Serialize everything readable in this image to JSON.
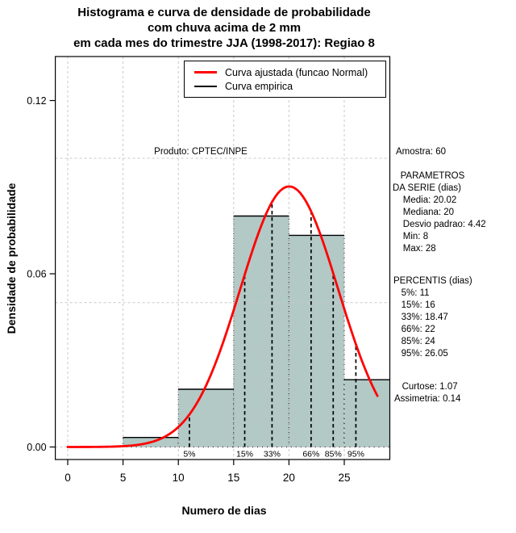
{
  "title": "Histograma e curva de densidade de probabilidade\ncom chuva acima de 2 mm\nem cada mes do trimestre JJA (1998-2017): Regiao 8",
  "legend": {
    "items": [
      {
        "label": "Curva ajustada (funcao Normal)",
        "color": "#ff0000"
      },
      {
        "label": "Curva empirica",
        "color": "#000000"
      }
    ]
  },
  "side_panel": {
    "sample": "Amostra: 60",
    "parameters": "   PARAMETROS\nDA SERIE (dias)\n    Media: 20.02\n    Mediana: 20\n    Desvio padrao: 4.42\n    Min: 8\n    Max: 28",
    "percentiles": "PERCENTIS (dias)\n   5%: 11\n   15%: 16\n   33%: 18.47\n   66%: 22\n   85%: 24\n   95%: 26.05",
    "moments": "   Curtose: 1.07\nAssimetria: 0.14"
  },
  "chart_data": {
    "type": "bar",
    "subtype": "histogram-with-normal-density-curve",
    "title": "Histograma e curva de densidade de probabilidade com chuva acima de 2 mm em cada mes do trimestre JJA (1998-2017): Regiao 8",
    "xlabel": "Numero de dias",
    "ylabel": "Densidade de probabilidade",
    "xlim": [
      0,
      28
    ],
    "ylim": [
      0,
      0.13
    ],
    "x_ticks": [
      0,
      5,
      10,
      15,
      20,
      25
    ],
    "y_ticks": [
      0,
      0.06,
      0.12
    ],
    "y_tick_labels": [
      "0.00",
      "0.06",
      "0.12"
    ],
    "grid": {
      "x": [
        0,
        5,
        10,
        15,
        20,
        25
      ],
      "y": [
        0,
        0.05,
        0.1
      ]
    },
    "bins": [
      {
        "from": 5,
        "to": 10,
        "density": 0.0033
      },
      {
        "from": 10,
        "to": 15,
        "density": 0.02
      },
      {
        "from": 15,
        "to": 20,
        "density": 0.08
      },
      {
        "from": 20,
        "to": 25,
        "density": 0.0733
      },
      {
        "from": 25,
        "to": 30,
        "density": 0.0233
      }
    ],
    "normal_curve": {
      "mean": 20.02,
      "sd": 4.42,
      "x_from": 0,
      "x_to": 28
    },
    "percentile_markers": [
      {
        "label": "5%",
        "x": 11
      },
      {
        "label": "15%",
        "x": 16
      },
      {
        "label": "33%",
        "x": 18.47
      },
      {
        "label": "66%",
        "x": 22
      },
      {
        "label": "85%",
        "x": 24
      },
      {
        "label": "95%",
        "x": 26.05
      }
    ],
    "annotation": "Produto: CPTEC/INPE",
    "colors": {
      "bar_fill": "#b2c9c6",
      "bar_border": "#000000",
      "curve": "#ff0000",
      "empirical": "#000000",
      "grid": "#c9c9c9"
    }
  }
}
